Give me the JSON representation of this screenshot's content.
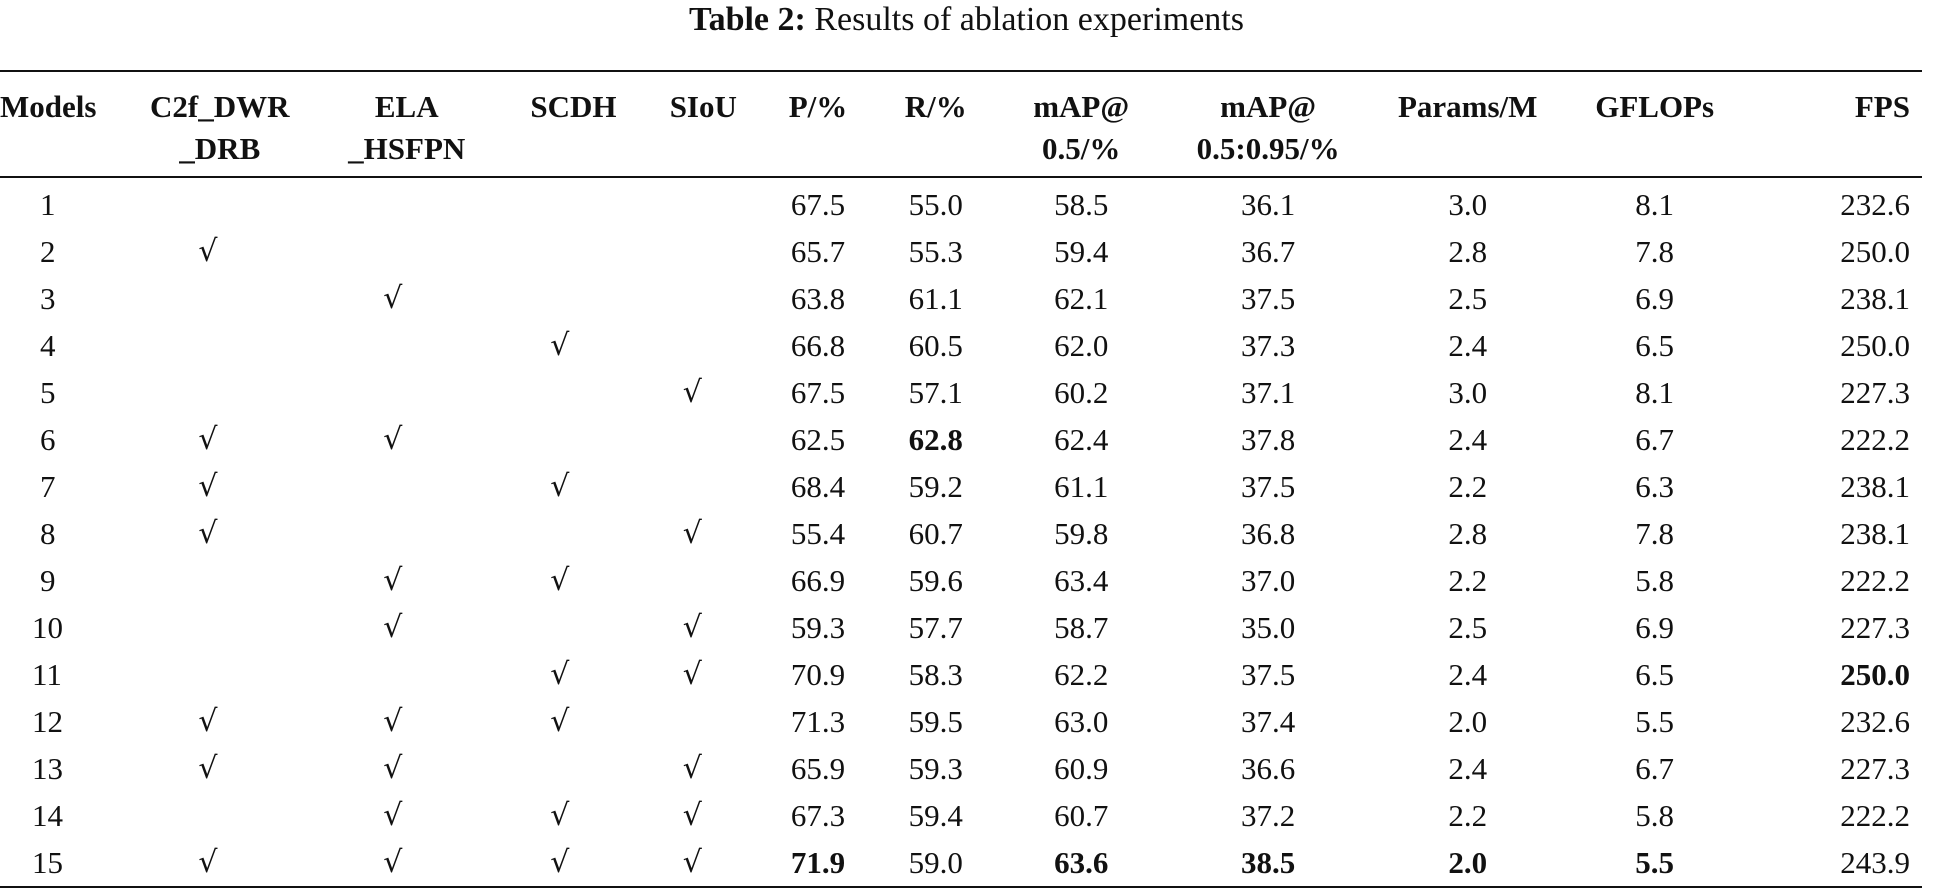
{
  "caption": {
    "label": "Table 2:",
    "text": "Results of ablation experiments"
  },
  "headers": [
    [
      "Models",
      ""
    ],
    [
      "C2f_DWR",
      "_DRB"
    ],
    [
      "ELA",
      "_HSFPN"
    ],
    [
      "SCDH",
      ""
    ],
    [
      "SIoU",
      ""
    ],
    [
      "P/%",
      ""
    ],
    [
      "R/%",
      ""
    ],
    [
      "mAP@",
      "0.5/%"
    ],
    [
      "mAP@",
      "0.5:0.95/%"
    ],
    [
      "Params/M",
      ""
    ],
    [
      "GFLOPs",
      ""
    ],
    [
      "FPS",
      ""
    ]
  ],
  "check_symbol": "√",
  "rows": [
    {
      "model": "1",
      "c2f": false,
      "ela": false,
      "scdh": false,
      "siou": false,
      "p": "67.5",
      "r": "55.0",
      "map50": "58.5",
      "map5095": "36.1",
      "params": "3.0",
      "gflops": "8.1",
      "fps": "232.6"
    },
    {
      "model": "2",
      "c2f": true,
      "ela": false,
      "scdh": false,
      "siou": false,
      "p": "65.7",
      "r": "55.3",
      "map50": "59.4",
      "map5095": "36.7",
      "params": "2.8",
      "gflops": "7.8",
      "fps": "250.0"
    },
    {
      "model": "3",
      "c2f": false,
      "ela": true,
      "scdh": false,
      "siou": false,
      "p": "63.8",
      "r": "61.1",
      "map50": "62.1",
      "map5095": "37.5",
      "params": "2.5",
      "gflops": "6.9",
      "fps": "238.1"
    },
    {
      "model": "4",
      "c2f": false,
      "ela": false,
      "scdh": true,
      "siou": false,
      "p": "66.8",
      "r": "60.5",
      "map50": "62.0",
      "map5095": "37.3",
      "params": "2.4",
      "gflops": "6.5",
      "fps": "250.0"
    },
    {
      "model": "5",
      "c2f": false,
      "ela": false,
      "scdh": false,
      "siou": true,
      "p": "67.5",
      "r": "57.1",
      "map50": "60.2",
      "map5095": "37.1",
      "params": "3.0",
      "gflops": "8.1",
      "fps": "227.3"
    },
    {
      "model": "6",
      "c2f": true,
      "ela": true,
      "scdh": false,
      "siou": false,
      "p": "62.5",
      "r": "62.8",
      "map50": "62.4",
      "map5095": "37.8",
      "params": "2.4",
      "gflops": "6.7",
      "fps": "222.2",
      "bold": [
        "r"
      ]
    },
    {
      "model": "7",
      "c2f": true,
      "ela": false,
      "scdh": true,
      "siou": false,
      "p": "68.4",
      "r": "59.2",
      "map50": "61.1",
      "map5095": "37.5",
      "params": "2.2",
      "gflops": "6.3",
      "fps": "238.1"
    },
    {
      "model": "8",
      "c2f": true,
      "ela": false,
      "scdh": false,
      "siou": true,
      "p": "55.4",
      "r": "60.7",
      "map50": "59.8",
      "map5095": "36.8",
      "params": "2.8",
      "gflops": "7.8",
      "fps": "238.1"
    },
    {
      "model": "9",
      "c2f": false,
      "ela": true,
      "scdh": true,
      "siou": false,
      "p": "66.9",
      "r": "59.6",
      "map50": "63.4",
      "map5095": "37.0",
      "params": "2.2",
      "gflops": "5.8",
      "fps": "222.2"
    },
    {
      "model": "10",
      "c2f": false,
      "ela": true,
      "scdh": false,
      "siou": true,
      "p": "59.3",
      "r": "57.7",
      "map50": "58.7",
      "map5095": "35.0",
      "params": "2.5",
      "gflops": "6.9",
      "fps": "227.3"
    },
    {
      "model": "11",
      "c2f": false,
      "ela": false,
      "scdh": true,
      "siou": true,
      "p": "70.9",
      "r": "58.3",
      "map50": "62.2",
      "map5095": "37.5",
      "params": "2.4",
      "gflops": "6.5",
      "fps": "250.0",
      "bold": [
        "fps"
      ]
    },
    {
      "model": "12",
      "c2f": true,
      "ela": true,
      "scdh": true,
      "siou": false,
      "p": "71.3",
      "r": "59.5",
      "map50": "63.0",
      "map5095": "37.4",
      "params": "2.0",
      "gflops": "5.5",
      "fps": "232.6"
    },
    {
      "model": "13",
      "c2f": true,
      "ela": true,
      "scdh": false,
      "siou": true,
      "p": "65.9",
      "r": "59.3",
      "map50": "60.9",
      "map5095": "36.6",
      "params": "2.4",
      "gflops": "6.7",
      "fps": "227.3"
    },
    {
      "model": "14",
      "c2f": false,
      "ela": true,
      "scdh": true,
      "siou": true,
      "p": "67.3",
      "r": "59.4",
      "map50": "60.7",
      "map5095": "37.2",
      "params": "2.2",
      "gflops": "5.8",
      "fps": "222.2"
    },
    {
      "model": "15",
      "c2f": true,
      "ela": true,
      "scdh": true,
      "siou": true,
      "p": "71.9",
      "r": "59.0",
      "map50": "63.6",
      "map5095": "38.5",
      "params": "2.0",
      "gflops": "5.5",
      "fps": "243.9",
      "bold": [
        "p",
        "map50",
        "map5095",
        "params",
        "gflops"
      ]
    }
  ]
}
